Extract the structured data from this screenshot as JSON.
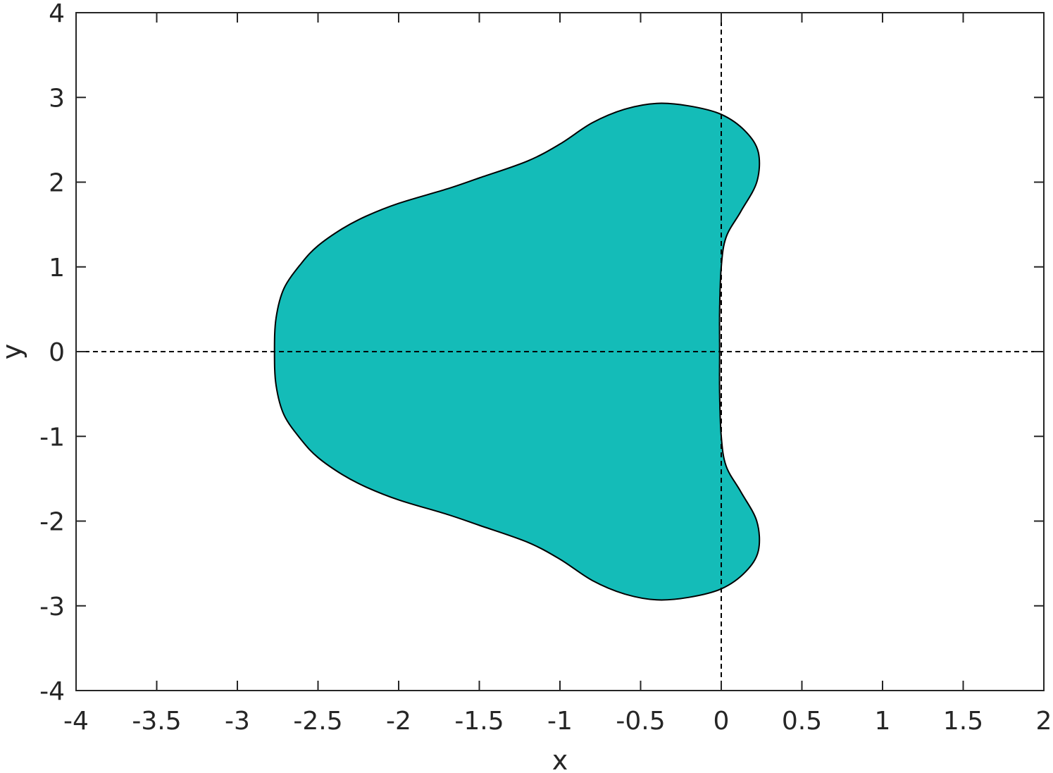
{
  "chart_data": {
    "type": "area",
    "title": "",
    "xlabel": "x",
    "ylabel": "y",
    "xlim": [
      -4,
      2
    ],
    "ylim": [
      -4,
      4
    ],
    "grid": false,
    "x_ticks": [
      -4,
      -3.5,
      -3,
      -2.5,
      -2,
      -1.5,
      -1,
      -0.5,
      0,
      0.5,
      1,
      1.5,
      2
    ],
    "x_tick_labels": [
      "-4",
      "-3.5",
      "-3",
      "-2.5",
      "-2",
      "-1.5",
      "-1",
      "-0.5",
      "0",
      "0.5",
      "1",
      "1.5",
      "2"
    ],
    "y_ticks": [
      -4,
      -3,
      -2,
      -1,
      0,
      1,
      2,
      3,
      4
    ],
    "y_tick_labels": [
      "-4",
      "-3",
      "-2",
      "-1",
      "0",
      "1",
      "2",
      "3",
      "4"
    ],
    "reference_lines": {
      "x": 0,
      "y": 0,
      "style": "dashed"
    },
    "region": {
      "name": "shaded region",
      "fill_color": "#14bcb8",
      "edge_color": "#000000",
      "boundary_upper_half": [
        [
          -2.77,
          0.0
        ],
        [
          -2.76,
          0.4
        ],
        [
          -2.71,
          0.75
        ],
        [
          -2.6,
          1.05
        ],
        [
          -2.5,
          1.25
        ],
        [
          -2.35,
          1.45
        ],
        [
          -2.2,
          1.6
        ],
        [
          -2.0,
          1.75
        ],
        [
          -1.7,
          1.92
        ],
        [
          -1.5,
          2.05
        ],
        [
          -1.2,
          2.25
        ],
        [
          -1.0,
          2.45
        ],
        [
          -0.8,
          2.7
        ],
        [
          -0.6,
          2.86
        ],
        [
          -0.4,
          2.93
        ],
        [
          -0.2,
          2.9
        ],
        [
          0.0,
          2.8
        ],
        [
          0.15,
          2.6
        ],
        [
          0.23,
          2.35
        ],
        [
          0.22,
          2.0
        ],
        [
          0.12,
          1.65
        ],
        [
          0.03,
          1.35
        ],
        [
          0.0,
          1.0
        ],
        [
          -0.01,
          0.5
        ],
        [
          -0.01,
          0.0
        ]
      ],
      "symmetric_about_x_axis": true
    }
  }
}
